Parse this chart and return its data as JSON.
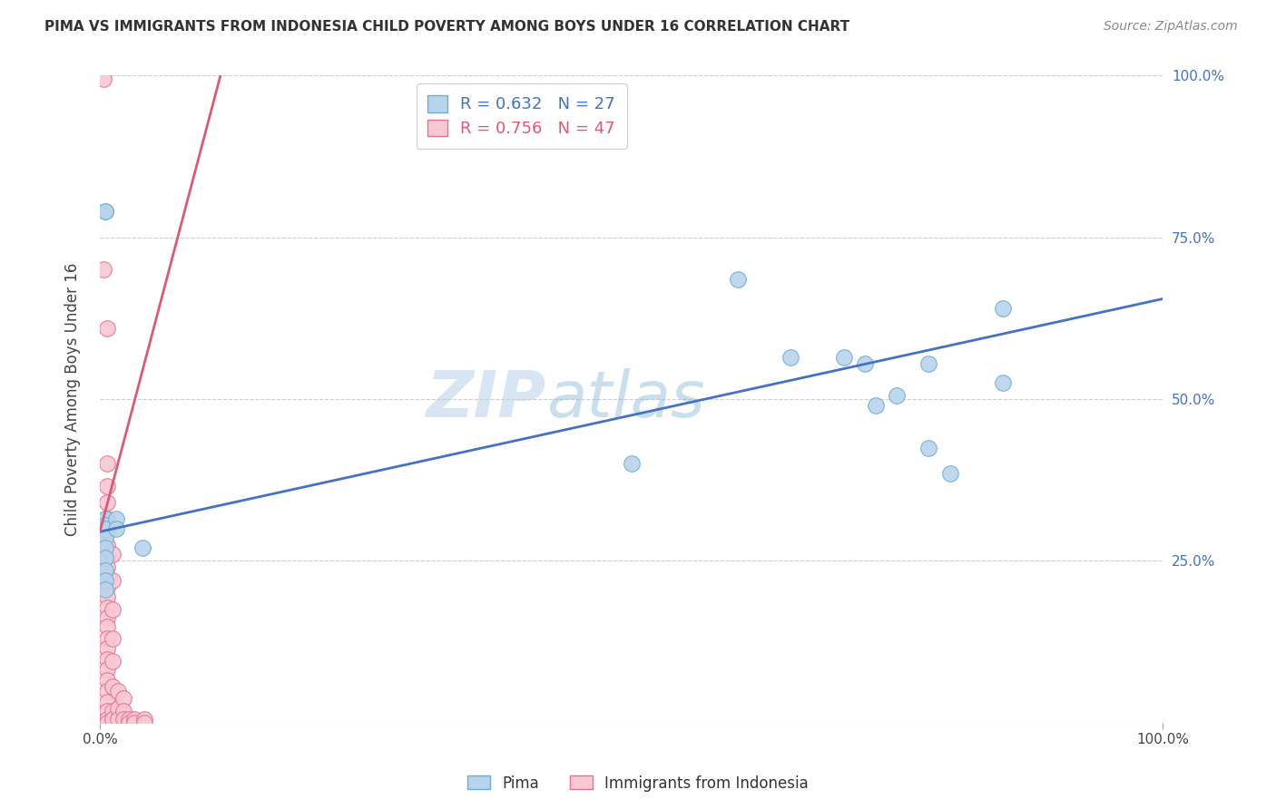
{
  "title": "PIMA VS IMMIGRANTS FROM INDONESIA CHILD POVERTY AMONG BOYS UNDER 16 CORRELATION CHART",
  "source": "Source: ZipAtlas.com",
  "ylabel": "Child Poverty Among Boys Under 16",
  "xlim": [
    0,
    1
  ],
  "ylim": [
    0,
    1
  ],
  "ytick_labels": [
    "",
    "25.0%",
    "50.0%",
    "75.0%",
    "100.0%"
  ],
  "ytick_positions": [
    0.0,
    0.25,
    0.5,
    0.75,
    1.0
  ],
  "xtick_positions": [
    0.0,
    1.0
  ],
  "xtick_labels": [
    "0.0%",
    "100.0%"
  ],
  "grid_color": "#cccccc",
  "background_color": "#ffffff",
  "watermark_text": "ZIP",
  "watermark_text2": "atlas",
  "pima_color": "#b8d4ed",
  "pima_edge_color": "#6aaed6",
  "pima_line_color": "#4472c4",
  "pima_R": 0.632,
  "pima_N": 27,
  "pima_scatter": [
    [
      0.005,
      0.79
    ],
    [
      0.005,
      0.79
    ],
    [
      0.005,
      0.315
    ],
    [
      0.005,
      0.315
    ],
    [
      0.005,
      0.305
    ],
    [
      0.005,
      0.3
    ],
    [
      0.005,
      0.285
    ],
    [
      0.005,
      0.27
    ],
    [
      0.005,
      0.255
    ],
    [
      0.005,
      0.235
    ],
    [
      0.005,
      0.22
    ],
    [
      0.005,
      0.205
    ],
    [
      0.015,
      0.315
    ],
    [
      0.015,
      0.3
    ],
    [
      0.04,
      0.27
    ],
    [
      0.5,
      0.4
    ],
    [
      0.6,
      0.685
    ],
    [
      0.65,
      0.565
    ],
    [
      0.7,
      0.565
    ],
    [
      0.72,
      0.555
    ],
    [
      0.73,
      0.49
    ],
    [
      0.75,
      0.505
    ],
    [
      0.78,
      0.555
    ],
    [
      0.78,
      0.425
    ],
    [
      0.8,
      0.385
    ],
    [
      0.85,
      0.64
    ],
    [
      0.85,
      0.525
    ]
  ],
  "pima_line_x": [
    0.0,
    1.0
  ],
  "pima_line_y": [
    0.295,
    0.655
  ],
  "indonesia_color": "#f9c8d4",
  "indonesia_edge_color": "#e87090",
  "indonesia_line_color": "#e05878",
  "indonesia_R": 0.756,
  "indonesia_N": 47,
  "indonesia_scatter": [
    [
      0.003,
      0.995
    ],
    [
      0.003,
      0.7
    ],
    [
      0.007,
      0.61
    ],
    [
      0.007,
      0.4
    ],
    [
      0.007,
      0.365
    ],
    [
      0.007,
      0.34
    ],
    [
      0.007,
      0.315
    ],
    [
      0.007,
      0.295
    ],
    [
      0.007,
      0.275
    ],
    [
      0.007,
      0.258
    ],
    [
      0.007,
      0.24
    ],
    [
      0.007,
      0.225
    ],
    [
      0.007,
      0.21
    ],
    [
      0.007,
      0.195
    ],
    [
      0.007,
      0.178
    ],
    [
      0.007,
      0.162
    ],
    [
      0.007,
      0.148
    ],
    [
      0.007,
      0.13
    ],
    [
      0.007,
      0.115
    ],
    [
      0.007,
      0.098
    ],
    [
      0.007,
      0.082
    ],
    [
      0.007,
      0.065
    ],
    [
      0.007,
      0.048
    ],
    [
      0.007,
      0.032
    ],
    [
      0.007,
      0.018
    ],
    [
      0.007,
      0.005
    ],
    [
      0.007,
      0.0
    ],
    [
      0.012,
      0.26
    ],
    [
      0.012,
      0.22
    ],
    [
      0.012,
      0.175
    ],
    [
      0.012,
      0.13
    ],
    [
      0.012,
      0.095
    ],
    [
      0.012,
      0.055
    ],
    [
      0.012,
      0.018
    ],
    [
      0.012,
      0.005
    ],
    [
      0.017,
      0.048
    ],
    [
      0.017,
      0.022
    ],
    [
      0.017,
      0.005
    ],
    [
      0.022,
      0.038
    ],
    [
      0.022,
      0.018
    ],
    [
      0.022,
      0.005
    ],
    [
      0.027,
      0.005
    ],
    [
      0.027,
      0.0
    ],
    [
      0.032,
      0.005
    ],
    [
      0.032,
      0.0
    ],
    [
      0.042,
      0.005
    ],
    [
      0.042,
      0.0
    ]
  ],
  "indonesia_line_x": [
    0.0,
    0.115
  ],
  "indonesia_line_y": [
    0.295,
    1.01
  ]
}
